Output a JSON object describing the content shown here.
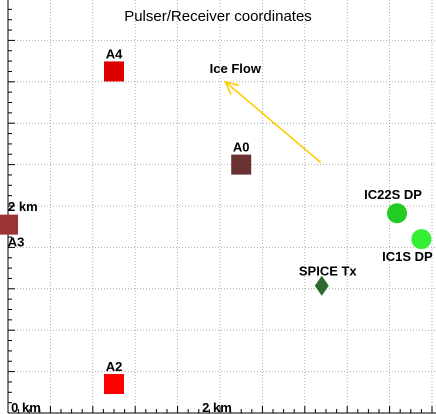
{
  "chart_data": {
    "type": "scatter",
    "title": "Pulser/Receiver coordinates",
    "xlim": [
      0,
      4.2
    ],
    "ylim": [
      0,
      4.0
    ],
    "grid": true,
    "x_ticks": [
      {
        "value": 0,
        "label": "0 km"
      },
      {
        "value": 2,
        "label": "2 km"
      }
    ],
    "y_ticks": [
      {
        "value": 0,
        "label": "0 km"
      },
      {
        "value": 2,
        "label": "2 km"
      }
    ],
    "points": [
      {
        "label": "A4",
        "x": 1.0,
        "y": 3.3,
        "marker": "square",
        "color": "#dd0000"
      },
      {
        "label": "A0",
        "x": 2.2,
        "y": 2.4,
        "marker": "square",
        "color": "#6b3232"
      },
      {
        "label": "A3",
        "x": 0.0,
        "y": 1.82,
        "marker": "square",
        "color": "#9b3434"
      },
      {
        "label": "A2",
        "x": 1.0,
        "y": 0.28,
        "marker": "square",
        "color": "#ff0000"
      },
      {
        "label": "IC22S DP",
        "x": 3.67,
        "y": 1.93,
        "marker": "circle",
        "color": "#22cc22"
      },
      {
        "label": "IC1S DP",
        "x": 3.9,
        "y": 1.68,
        "marker": "circle",
        "color": "#33ee33"
      },
      {
        "label": "SPICE Tx",
        "x": 2.96,
        "y": 1.23,
        "marker": "diamond",
        "color": "#2e6a2e"
      }
    ],
    "annotations": [
      {
        "text": "Ice Flow",
        "type": "arrow",
        "from": [
          2.95,
          2.42
        ],
        "to": [
          2.05,
          3.2
        ],
        "color": "#ffcc00"
      }
    ]
  }
}
